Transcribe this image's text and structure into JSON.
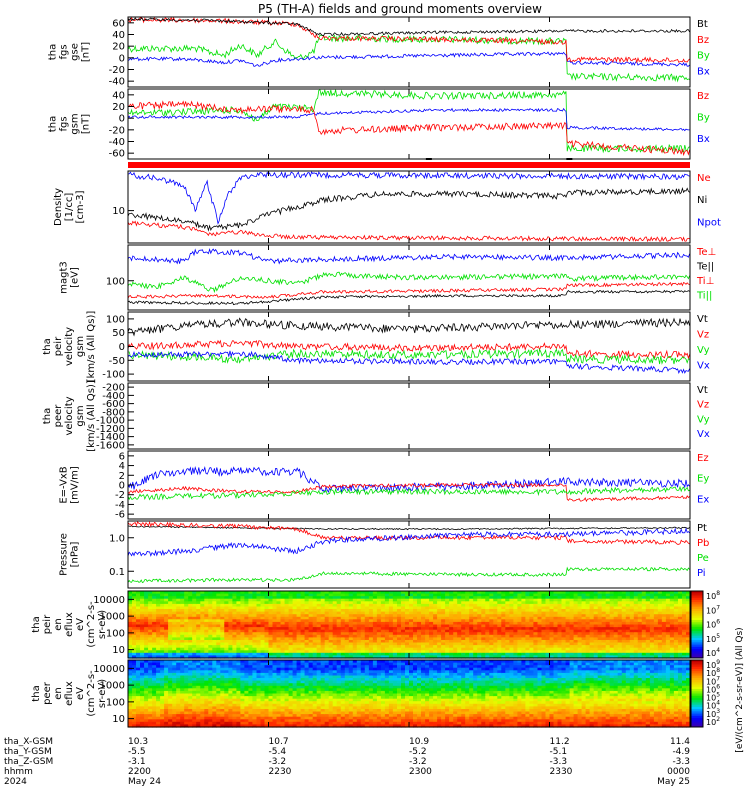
{
  "title": "P5 (TH-A) fields and ground moments overview",
  "colors": {
    "black": "#000000",
    "red": "#ff0000",
    "green": "#00e000",
    "blue": "#0000ff"
  },
  "chart_data": {
    "type": "line",
    "x_ticks": [
      "2200",
      "2230",
      "2300",
      "2330",
      "0000"
    ],
    "panels": [
      {
        "id": "fgs-gse",
        "ylabel": [
          "tha",
          "fgs",
          "gse",
          "[nT]"
        ],
        "yticks": [
          "60",
          "40",
          "20",
          "0",
          "-20",
          "-40"
        ],
        "ylim": [
          -50,
          70
        ],
        "legend": [
          {
            "name": "Bt",
            "color": "black"
          },
          {
            "name": "Bz",
            "color": "red"
          },
          {
            "name": "By",
            "color": "green"
          },
          {
            "name": "Bx",
            "color": "blue"
          }
        ]
      },
      {
        "id": "fgs-gsm",
        "ylabel": [
          "tha",
          "fgs",
          "gsm",
          "[nT]"
        ],
        "yticks": [
          "40",
          "20",
          "0",
          "-20",
          "-40",
          "-60"
        ],
        "ylim": [
          -70,
          50
        ],
        "legend": [
          {
            "name": "Bz",
            "color": "red"
          },
          {
            "name": "By",
            "color": "green"
          },
          {
            "name": "Bx",
            "color": "blue"
          }
        ]
      },
      {
        "id": "density",
        "ylabel": [
          "Density",
          "[1/cc]",
          "[cm-3]"
        ],
        "yticks": [
          "10"
        ],
        "scale": "log",
        "legend": [
          {
            "name": "Ne",
            "color": "red"
          },
          {
            "name": "Ni",
            "color": "black"
          },
          {
            "name": "Npot",
            "color": "blue"
          }
        ]
      },
      {
        "id": "temp",
        "ylabel": [
          "magt3",
          "[eV]"
        ],
        "yticks": [
          "100"
        ],
        "scale": "log",
        "legend": [
          {
            "name": "Te⊥",
            "color": "red"
          },
          {
            "name": "Te||",
            "color": "black"
          },
          {
            "name": "Ti⊥",
            "color": "red"
          },
          {
            "name": "Ti||",
            "color": "green"
          }
        ]
      },
      {
        "id": "peir-vel",
        "ylabel": [
          "tha",
          "peir",
          "velocity",
          "gsm",
          "[km/s (All Qs)]"
        ],
        "yticks": [
          "100",
          "50",
          "0",
          "-50",
          "-100"
        ],
        "ylim": [
          -100,
          130
        ],
        "legend": [
          {
            "name": "Vt",
            "color": "black"
          },
          {
            "name": "Vz",
            "color": "red"
          },
          {
            "name": "Vy",
            "color": "green"
          },
          {
            "name": "Vx",
            "color": "blue"
          }
        ]
      },
      {
        "id": "peer-vel",
        "ylabel": [
          "tha",
          "peer",
          "velocity",
          "gsm",
          "[km/s (All Qs)]"
        ],
        "yticks": [
          "-200",
          "-400",
          "-600",
          "-800",
          "-1000",
          "-1200",
          "-1400",
          "-1600"
        ],
        "ylim": [
          -1650,
          0
        ],
        "legend": [
          {
            "name": "Vt",
            "color": "black"
          },
          {
            "name": "Vz",
            "color": "red"
          },
          {
            "name": "Vy",
            "color": "green"
          },
          {
            "name": "Vx",
            "color": "blue"
          }
        ]
      },
      {
        "id": "efield",
        "ylabel": [
          "E=-VxB",
          "[mV/m]"
        ],
        "yticks": [
          "6",
          "4",
          "2",
          "0",
          "-2",
          "-4",
          "-6"
        ],
        "ylim": [
          -6.5,
          7
        ],
        "legend": [
          {
            "name": "Ez",
            "color": "red"
          },
          {
            "name": "Ey",
            "color": "green"
          },
          {
            "name": "Ex",
            "color": "blue"
          }
        ]
      },
      {
        "id": "pressure",
        "ylabel": [
          "Pressure",
          "[nPa]"
        ],
        "yticks": [
          "1.0",
          "0.1"
        ],
        "scale": "log",
        "legend": [
          {
            "name": "Pt",
            "color": "black"
          },
          {
            "name": "Pb",
            "color": "red"
          },
          {
            "name": "Pe",
            "color": "green"
          },
          {
            "name": "Pi",
            "color": "blue"
          }
        ]
      },
      {
        "id": "peir-spec",
        "ylabel": [
          "tha",
          "peir",
          "en",
          "eflux",
          "eV",
          "(cm^2-s-",
          "sr-eV)"
        ],
        "yticks": [
          "10000",
          "1000",
          "100",
          "10"
        ],
        "scale": "log",
        "type": "heatmap",
        "colorbar": {
          "labels": [
            "10^8",
            "10^7",
            "10^6",
            "10^5",
            "10^4"
          ],
          "unit": "[eV/(cm^2-s-sr-eV)] (All Qs)"
        }
      },
      {
        "id": "peer-spec",
        "ylabel": [
          "tha",
          "peer",
          "en",
          "eflux",
          "eV",
          "(cm^2-s-",
          "sr-eV)"
        ],
        "yticks": [
          "10000",
          "1000",
          "100",
          "10"
        ],
        "scale": "log",
        "type": "heatmap",
        "colorbar": {
          "labels": [
            "10^9",
            "10^8",
            "10^7",
            "10^6",
            "10^5",
            "10^4",
            "10^3",
            "10^2"
          ],
          "unit": "[eV/(cm^2-s-sr-eV)] (All Qs)"
        }
      }
    ]
  },
  "footer": {
    "rows": [
      {
        "label": "tha_X-GSM",
        "values": [
          "10.3",
          "10.7",
          "10.9",
          "11.2",
          "11.4"
        ]
      },
      {
        "label": "tha_Y-GSM",
        "values": [
          "-5.5",
          "-5.4",
          "-5.2",
          "-5.1",
          "-4.9"
        ]
      },
      {
        "label": "tha_Z-GSM",
        "values": [
          "-3.1",
          "-3.2",
          "-3.2",
          "-3.3",
          "-3.3"
        ]
      },
      {
        "label": "hhmm",
        "values": [
          "2200",
          "2230",
          "2300",
          "2330",
          "0000"
        ]
      },
      {
        "label": "2024",
        "values": [
          "May 24",
          "",
          "",
          "",
          "May 25"
        ]
      }
    ]
  }
}
